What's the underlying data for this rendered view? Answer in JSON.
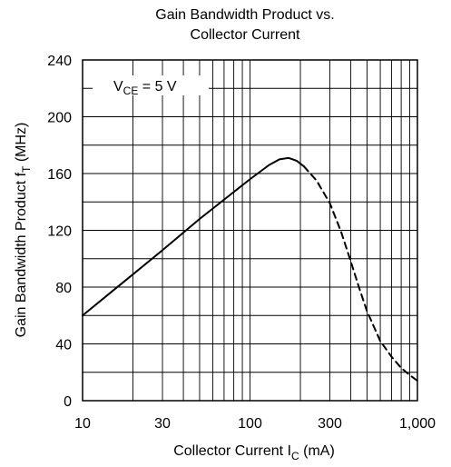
{
  "chart_data": {
    "type": "line",
    "title_line1": "Gain Bandwidth Product vs.",
    "title_line2": "Collector Current",
    "xlabel_main": "Collector Current  I",
    "xlabel_sub": "C",
    "xlabel_unit": "  (mA)",
    "ylabel_main": "Gain Bandwidth Product  f",
    "ylabel_sub": "T",
    "ylabel_unit": "  (MHz)",
    "annotation_main": "V",
    "annotation_sub": "CE",
    "annotation_rest": " = 5 V",
    "x_scale": "log",
    "xlim": [
      10,
      1000
    ],
    "ylim": [
      0,
      240
    ],
    "grid": true,
    "x_ticks": [
      {
        "value": 10,
        "label": "10"
      },
      {
        "value": 30,
        "label": "30"
      },
      {
        "value": 100,
        "label": "100"
      },
      {
        "value": 300,
        "label": "300"
      },
      {
        "value": 1000,
        "label": "1,000"
      }
    ],
    "y_ticks": [
      {
        "value": 0,
        "label": "0"
      },
      {
        "value": 40,
        "label": "40"
      },
      {
        "value": 80,
        "label": "80"
      },
      {
        "value": 120,
        "label": "120"
      },
      {
        "value": 160,
        "label": "160"
      },
      {
        "value": 200,
        "label": "200"
      },
      {
        "value": 240,
        "label": "240"
      }
    ],
    "series": [
      {
        "style": "solid",
        "x": [
          10,
          15,
          20,
          30,
          50,
          80,
          100,
          130,
          150,
          170,
          190,
          210
        ],
        "y": [
          60,
          77,
          89,
          106,
          128,
          147,
          156,
          166,
          170,
          171,
          169,
          165
        ]
      },
      {
        "style": "dashed",
        "x": [
          210,
          250,
          300,
          350,
          400,
          450,
          500,
          550,
          600,
          700,
          800,
          900,
          1000
        ],
        "y": [
          165,
          155,
          139,
          119,
          98,
          79,
          63,
          52,
          42,
          31,
          23,
          18,
          14
        ]
      }
    ]
  }
}
